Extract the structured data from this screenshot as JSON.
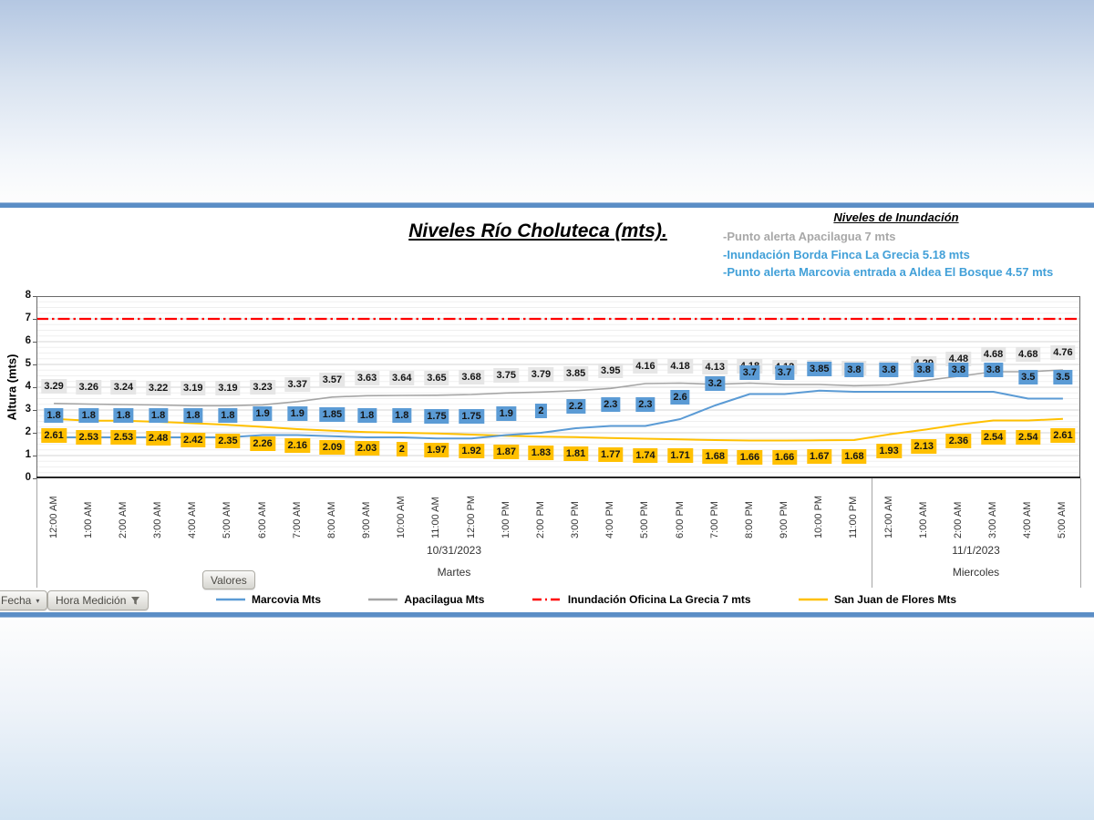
{
  "title": "Niveles Río Choluteca (mts).",
  "flood_notes": {
    "heading": "Niveles de Inundación",
    "items": [
      {
        "text": "-Punto alerta Apacilagua 7 mts",
        "color": "#a8a8a8"
      },
      {
        "text": "-Inundación Borda Finca La Grecia 5.18 mts",
        "color": "#42a0d8"
      },
      {
        "text": "-Punto alerta Marcovia entrada a Aldea El Bosque 4.57 mts",
        "color": "#42a0d8"
      }
    ]
  },
  "chart_data": {
    "type": "line",
    "title": "Niveles Río Choluteca (mts).",
    "ylabel": "Altura (mts)",
    "ylim": [
      0,
      8
    ],
    "yticks": [
      0,
      1,
      2,
      3,
      4,
      5,
      6,
      7,
      8
    ],
    "grid": true,
    "legend_position": "bottom",
    "x": [
      "12:00 AM",
      "1:00 AM",
      "2:00 AM",
      "3:00 AM",
      "4:00 AM",
      "5:00 AM",
      "6:00 AM",
      "7:00 AM",
      "8:00 AM",
      "9:00 AM",
      "10:00 AM",
      "11:00 AM",
      "12:00 PM",
      "1:00 PM",
      "2:00 PM",
      "3:00 PM",
      "4:00 PM",
      "5:00 PM",
      "6:00 PM",
      "7:00 PM",
      "8:00 PM",
      "9:00 PM",
      "10:00 PM",
      "11:00 PM",
      "12:00 AM",
      "1:00 AM",
      "2:00 AM",
      "3:00 AM",
      "4:00 AM",
      "5:00 AM"
    ],
    "series": [
      {
        "name": "Marcovia Mts",
        "color": "#5b9bd5",
        "label_bg": "#5b9bd5",
        "style": "solid",
        "values": [
          1.8,
          1.8,
          1.8,
          1.8,
          1.8,
          1.8,
          1.9,
          1.9,
          1.85,
          1.8,
          1.8,
          1.75,
          1.75,
          1.9,
          2,
          2.2,
          2.3,
          2.3,
          2.6,
          3.2,
          3.7,
          3.7,
          3.85,
          3.8,
          3.8,
          3.8,
          3.8,
          3.8,
          3.5,
          3.5
        ]
      },
      {
        "name": "Apacilagua Mts",
        "color": "#a5a5a5",
        "label_bg": "#e6e6e6",
        "style": "solid",
        "values": [
          3.29,
          3.26,
          3.24,
          3.22,
          3.19,
          3.19,
          3.23,
          3.37,
          3.57,
          3.63,
          3.64,
          3.65,
          3.68,
          3.75,
          3.79,
          3.85,
          3.95,
          4.16,
          4.18,
          4.13,
          4.18,
          4.12,
          4.12,
          4.07,
          4.1,
          4.29,
          4.48,
          4.68,
          4.68,
          4.76
        ]
      },
      {
        "name": "Inundación Oficina La Grecia 7 mts",
        "color": "#ff0000",
        "style": "dashdot",
        "constant_value": 7
      },
      {
        "name": "San Juan de Flores Mts",
        "color": "#ffc000",
        "label_bg": "#ffc000",
        "style": "solid",
        "values": [
          2.61,
          2.53,
          2.53,
          2.48,
          2.42,
          2.35,
          2.26,
          2.16,
          2.09,
          2.03,
          2,
          1.97,
          1.92,
          1.87,
          1.83,
          1.81,
          1.77,
          1.74,
          1.71,
          1.68,
          1.66,
          1.66,
          1.67,
          1.68,
          1.93,
          2.13,
          2.36,
          2.54,
          2.54,
          2.61
        ]
      }
    ],
    "date_groups": [
      {
        "date": "10/31/2023",
        "day": "Martes",
        "span": 24
      },
      {
        "date": "11/1/2023",
        "day": "Miercoles",
        "span": 6
      }
    ]
  },
  "field_buttons": {
    "valores": "Valores",
    "fecha": "Fecha",
    "hora_medicion": "Hora Medición"
  }
}
